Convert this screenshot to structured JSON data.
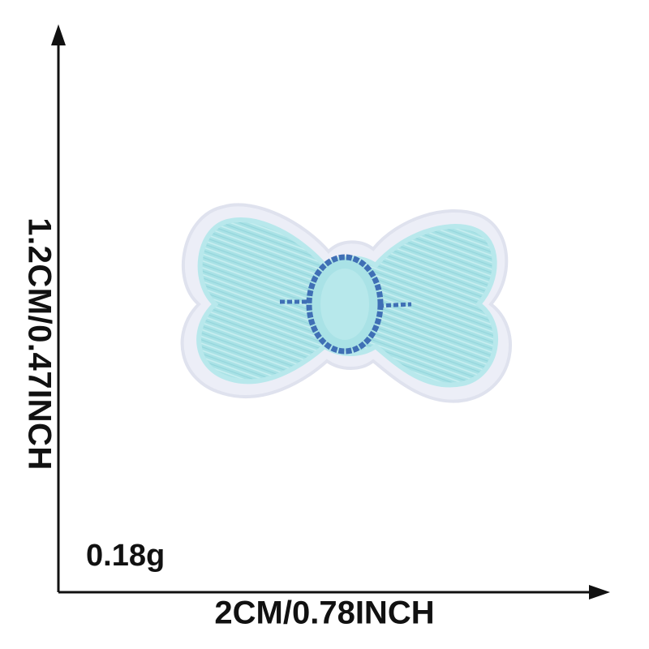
{
  "product": {
    "height_label": "1.2CM/0.47INCH",
    "width_label": "2CM/0.78INCH",
    "weight_label": "0.18g",
    "patch_icon": "bow-embroidered-patch",
    "colors": {
      "bow_fill": "#a9e2e6",
      "bow_border": "#e8eaf4",
      "knot_outline": "#3f6fb5",
      "axis": "#111111"
    }
  }
}
